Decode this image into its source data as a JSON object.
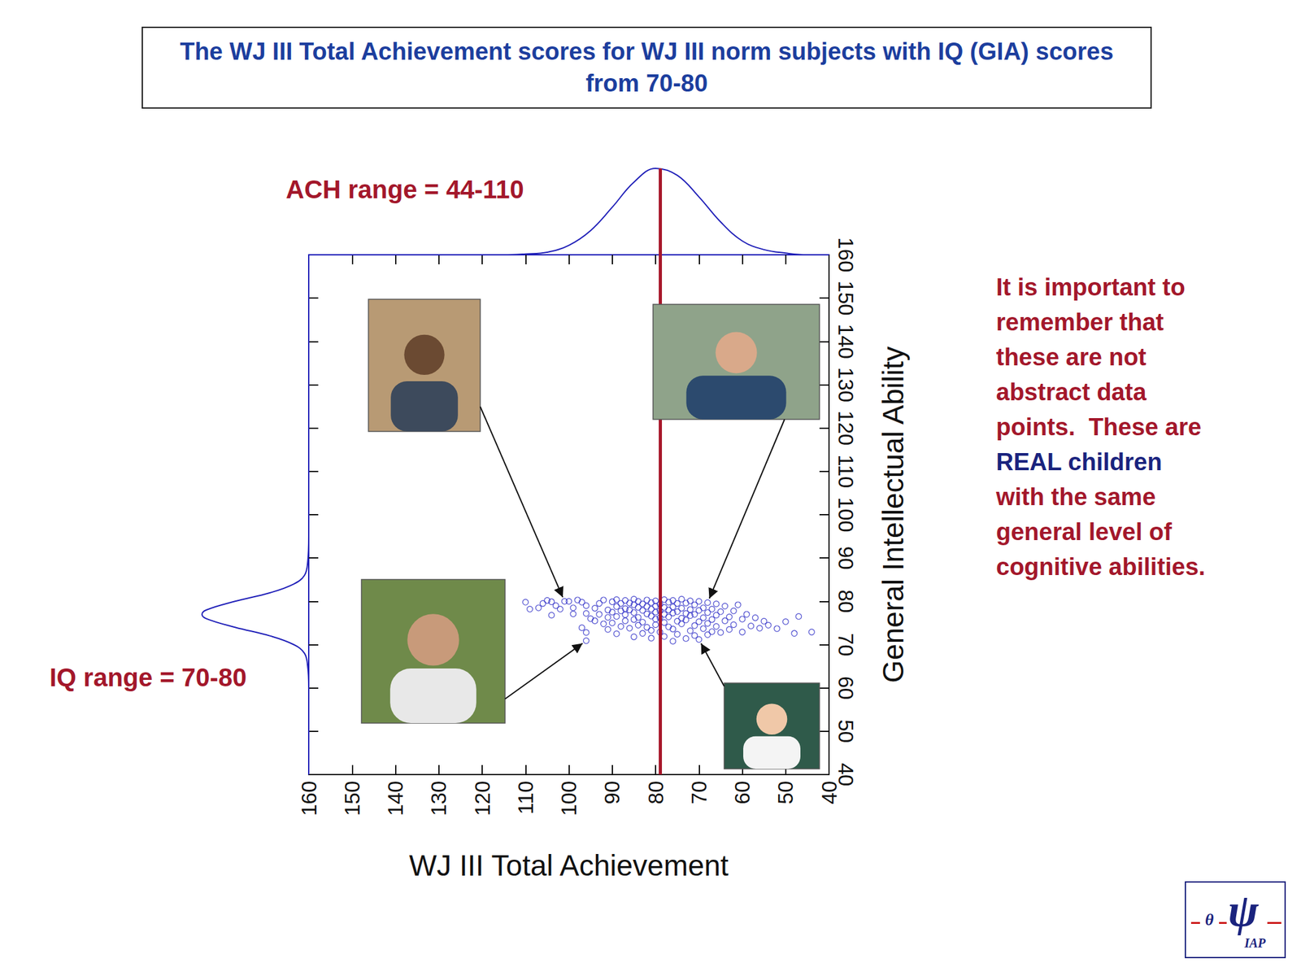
{
  "chart_data": {
    "type": "scatter",
    "title": "The WJ III Total Achievement scores for WJ III norm subjects with IQ (GIA) scores from 70-80",
    "x_label": "WJ III Total Achievement",
    "y_label": "General Intellectual Ability",
    "xlim": [
      160,
      40
    ],
    "xticks": [
      160,
      150,
      140,
      130,
      120,
      110,
      100,
      90,
      80,
      70,
      60,
      50,
      40
    ],
    "ylim": [
      40,
      160
    ],
    "yticks": [
      40,
      50,
      60,
      70,
      80,
      90,
      100,
      110,
      120,
      130,
      140,
      150,
      160
    ],
    "grid": false,
    "color": "#2626c4",
    "marker": "circle-open",
    "x": [
      110,
      107,
      106,
      105,
      103,
      101,
      100,
      102,
      104,
      99,
      98,
      97,
      96,
      96,
      95,
      97,
      96,
      96,
      94,
      94,
      93,
      93,
      92,
      92,
      91,
      91,
      91,
      90,
      90,
      90,
      89,
      89,
      89,
      89,
      88,
      88,
      88,
      87,
      87,
      87,
      87,
      86,
      86,
      86,
      85,
      85,
      85,
      85,
      85,
      84,
      84,
      84,
      84,
      83,
      83,
      83,
      83,
      82,
      82,
      82,
      82,
      81,
      81,
      81,
      81,
      81,
      80,
      80,
      80,
      80,
      80,
      79,
      79,
      79,
      79,
      78,
      78,
      78,
      78,
      78,
      77,
      77,
      77,
      77,
      76,
      76,
      76,
      76,
      76,
      75,
      75,
      75,
      75,
      74,
      74,
      74,
      74,
      73,
      73,
      73,
      73,
      72,
      72,
      72,
      72,
      71,
      71,
      71,
      71,
      70,
      70,
      70,
      70,
      69,
      69,
      69,
      68,
      68,
      68,
      68,
      67,
      67,
      67,
      66,
      66,
      66,
      65,
      65,
      64,
      64,
      63,
      63,
      62,
      62,
      61,
      60,
      60,
      59,
      58,
      57,
      56,
      55,
      54,
      52,
      50,
      48,
      47,
      44,
      109,
      104,
      99
    ],
    "values": [
      79.8,
      78.5,
      79.5,
      80.2,
      79,
      80,
      80,
      78.2,
      76.8,
      78.5,
      80.3,
      79.8,
      79,
      77.2,
      76,
      73.9,
      72.8,
      70.9,
      78.4,
      75.5,
      79.5,
      77,
      80.3,
      74.8,
      78,
      76.3,
      73.5,
      79.9,
      77.5,
      75,
      80.4,
      78.8,
      76.5,
      72.5,
      79.5,
      77.8,
      74.2,
      80.2,
      78.3,
      76.9,
      75.5,
      79.6,
      78,
      73.8,
      80.5,
      79.2,
      77.4,
      75.8,
      71.8,
      80,
      78.6,
      76.3,
      74.5,
      79.4,
      77.9,
      75.2,
      72.6,
      80.3,
      78.8,
      77.1,
      74,
      79.7,
      78.2,
      76.6,
      73.3,
      71.5,
      80.1,
      78.9,
      77.5,
      75.9,
      74.6,
      79.3,
      77.8,
      76.2,
      72.9,
      80.4,
      78.6,
      77,
      75.1,
      71.9,
      79.8,
      78,
      76.4,
      74.1,
      80.2,
      78.7,
      77.3,
      73.6,
      70.8,
      79.5,
      77.6,
      75.4,
      72.4,
      80.5,
      78.4,
      76.1,
      74.8,
      79.6,
      77.2,
      75.7,
      71.4,
      80.1,
      78.1,
      76.7,
      73.2,
      79.2,
      77,
      74.4,
      72.1,
      80,
      77.9,
      75.3,
      71.2,
      78.5,
      76.2,
      73.7,
      79.7,
      77.4,
      74.9,
      72.3,
      78.2,
      75.8,
      73,
      79.4,
      76.8,
      74.2,
      77.6,
      72.8,
      78.9,
      75.5,
      76.4,
      73.5,
      77.8,
      74.6,
      79.2,
      75.9,
      72.9,
      77,
      74.3,
      76.2,
      73.8,
      75.4,
      74.5,
      73.7,
      75.3,
      72.6,
      76.5,
      72.9,
      78.2,
      79.9,
      77.1
    ],
    "vline": 79,
    "x_density": {
      "x": [
        160,
        155,
        150,
        145,
        140,
        135,
        130,
        125,
        120,
        115,
        110,
        105,
        100,
        95,
        90,
        85,
        80,
        75,
        70,
        65,
        60,
        55,
        50,
        45,
        40
      ],
      "values": [
        0,
        0,
        0,
        0,
        0,
        0,
        0,
        0,
        0,
        0,
        0.01,
        0.03,
        0.11,
        0.28,
        0.55,
        0.84,
        1,
        0.92,
        0.67,
        0.38,
        0.16,
        0.06,
        0.02,
        0,
        0
      ]
    },
    "y_density": {
      "y": [
        40,
        60,
        65,
        68,
        70,
        72,
        74,
        76,
        77,
        78,
        80,
        82,
        84,
        86,
        89,
        95,
        160
      ],
      "values": [
        0,
        0,
        0.01,
        0.04,
        0.14,
        0.36,
        0.69,
        0.96,
        1,
        0.96,
        0.69,
        0.36,
        0.14,
        0.04,
        0.01,
        0,
        0
      ]
    },
    "annotations": [
      "ACH range = 44-110",
      "IQ range = 70-80"
    ],
    "note": {
      "lines": [
        "It is important to",
        "remember that",
        "these are not",
        "abstract data",
        "points.  These are",
        "REAL children",
        "with the same",
        "general level of",
        "cognitive abilities."
      ],
      "highlight": "REAL children"
    },
    "logo": {
      "prefix": "θ",
      "symbol": "ψ",
      "subscript": "IAP"
    }
  }
}
